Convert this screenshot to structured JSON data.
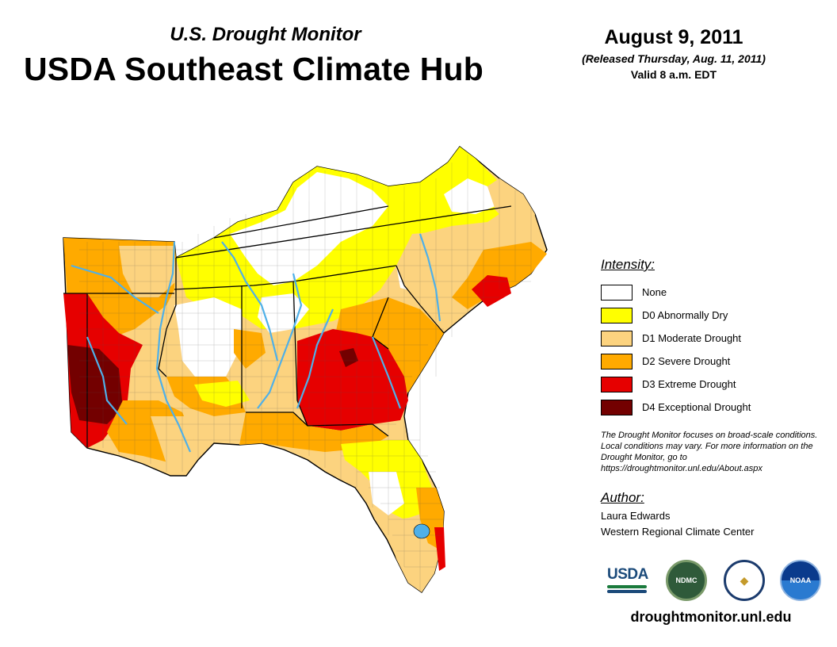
{
  "header": {
    "subtitle": "U.S. Drought Monitor",
    "title": "USDA Southeast Climate Hub",
    "date": "August 9, 2011",
    "released": "(Released Thursday, Aug. 11, 2011)",
    "valid": "Valid 8 a.m. EDT"
  },
  "legend": {
    "title": "Intensity:",
    "items": [
      {
        "label": "None",
        "color": "#ffffff"
      },
      {
        "label": "D0 Abnormally Dry",
        "color": "#ffff00"
      },
      {
        "label": "D1 Moderate Drought",
        "color": "#fcd37f"
      },
      {
        "label": "D2 Severe Drought",
        "color": "#ffaa00"
      },
      {
        "label": "D3 Extreme Drought",
        "color": "#e60000"
      },
      {
        "label": "D4 Exceptional Drought",
        "color": "#730000"
      }
    ]
  },
  "note": "The Drought Monitor focuses on broad-scale conditions. Local conditions may vary. For more information on the Drought Monitor, go to https://droughtmonitor.unl.edu/About.aspx",
  "author": {
    "title": "Author:",
    "name": "Laura Edwards",
    "org": "Western Regional Climate Center"
  },
  "logos": [
    {
      "name": "usda-logo",
      "text": "USDA"
    },
    {
      "name": "ndmc-logo",
      "text": "NDMC"
    },
    {
      "name": "doc-logo",
      "text": ""
    },
    {
      "name": "noaa-logo",
      "text": "NOAA"
    }
  ],
  "footer": {
    "website": "droughtmonitor.unl.edu"
  },
  "colors": {
    "water": "#4fb0e8",
    "border": "#000000"
  }
}
